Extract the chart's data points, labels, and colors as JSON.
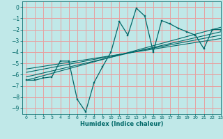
{
  "title": "",
  "xlabel": "Humidex (Indice chaleur)",
  "xlim": [
    -0.5,
    23
  ],
  "ylim": [
    -9.5,
    0.5
  ],
  "yticks": [
    0,
    -1,
    -2,
    -3,
    -4,
    -5,
    -6,
    -7,
    -8,
    -9
  ],
  "xticks": [
    0,
    1,
    2,
    3,
    4,
    5,
    6,
    7,
    8,
    9,
    10,
    11,
    12,
    13,
    14,
    15,
    16,
    17,
    18,
    19,
    20,
    21,
    22,
    23
  ],
  "bg_color": "#c0e8e8",
  "grid_color": "#e8a0a0",
  "line_color": "#006868",
  "main_x": [
    0,
    1,
    2,
    3,
    4,
    5,
    6,
    7,
    8,
    9,
    10,
    11,
    12,
    13,
    14,
    15,
    16,
    17,
    18,
    19,
    20,
    21,
    22,
    23
  ],
  "main_y": [
    -6.5,
    -6.5,
    -6.3,
    -6.2,
    -4.8,
    -4.8,
    -8.2,
    -9.3,
    -6.7,
    -5.3,
    -4.0,
    -1.3,
    -2.5,
    -0.1,
    -0.8,
    -4.0,
    -1.2,
    -1.5,
    -1.9,
    -2.2,
    -2.5,
    -3.7,
    -2.0,
    -2.0
  ],
  "trend1_x": [
    0,
    23
  ],
  "trend1_y": [
    -6.5,
    -1.8
  ],
  "trend2_x": [
    0,
    23
  ],
  "trend2_y": [
    -6.2,
    -2.2
  ],
  "trend3_x": [
    0,
    23
  ],
  "trend3_y": [
    -5.8,
    -2.5
  ],
  "trend4_x": [
    0,
    23
  ],
  "trend4_y": [
    -5.5,
    -2.8
  ]
}
